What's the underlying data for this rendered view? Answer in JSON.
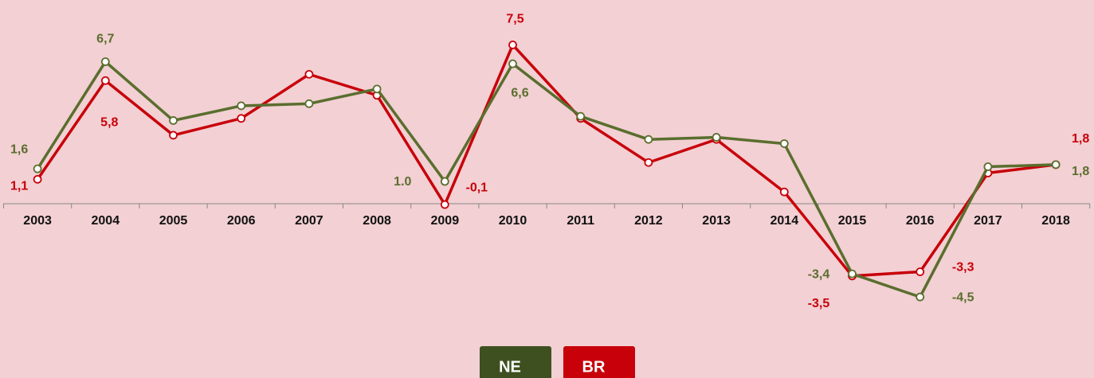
{
  "chart_data": {
    "type": "line",
    "categories": [
      "2003",
      "2004",
      "2005",
      "2006",
      "2007",
      "2008",
      "2009",
      "2010",
      "2011",
      "2012",
      "2013",
      "2014",
      "2015",
      "2016",
      "2017",
      "2018"
    ],
    "series": [
      {
        "name": "NE",
        "color": "#5a6e2e",
        "values": [
          1.6,
          6.7,
          3.9,
          4.6,
          4.7,
          5.4,
          1.0,
          6.6,
          4.1,
          3.0,
          3.1,
          2.8,
          -3.4,
          -4.5,
          1.7,
          1.8
        ],
        "value_labels": [
          "1,6",
          "6,7",
          null,
          null,
          null,
          null,
          "1.0",
          "6,6",
          null,
          null,
          null,
          null,
          "-3,4",
          "-4,5",
          null,
          "1,8"
        ]
      },
      {
        "name": "BR",
        "color": "#c8000a",
        "values": [
          1.1,
          5.8,
          3.2,
          4.0,
          6.1,
          5.1,
          -0.1,
          7.5,
          4.0,
          1.9,
          3.0,
          0.5,
          -3.5,
          -3.3,
          1.4,
          1.8
        ],
        "value_labels": [
          "1,1",
          "5,8",
          null,
          null,
          null,
          null,
          "-0,1",
          "7,5",
          null,
          null,
          null,
          null,
          "-3,5",
          "-3,3",
          null,
          "1,8"
        ]
      }
    ],
    "ylim": [
      -5,
      8
    ]
  }
}
